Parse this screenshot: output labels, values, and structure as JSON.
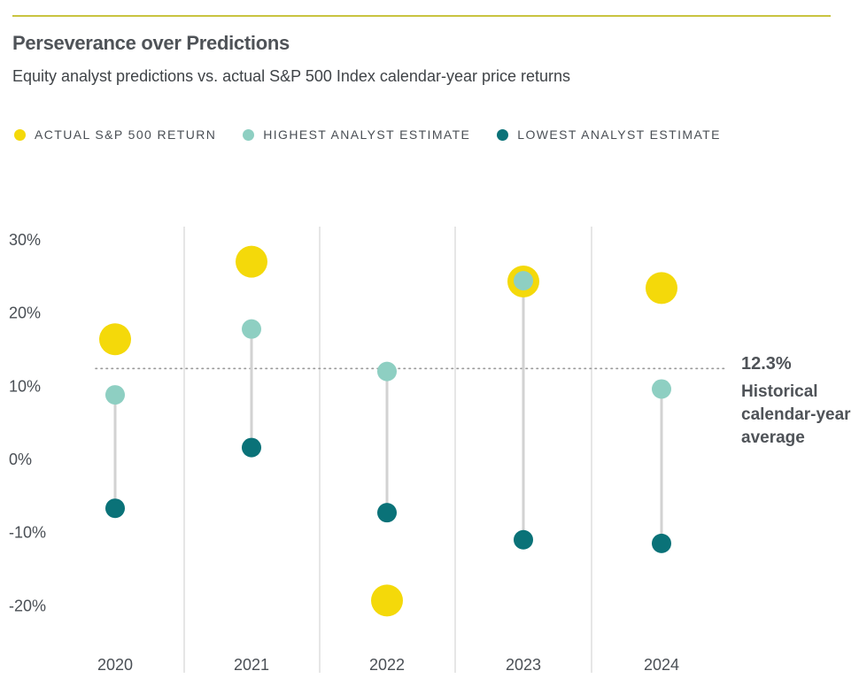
{
  "title": "Perseverance over Predictions",
  "subtitle": "Equity analyst predictions vs. actual S&P 500 Index calendar-year price returns",
  "colors": {
    "actual": "#f4d90a",
    "highest": "#8ecfc2",
    "lowest": "#0a7278",
    "connector": "#d2d2d2",
    "gridline": "#d6d6d6",
    "avg_line": "#9a9a9a"
  },
  "legend": [
    {
      "key": "actual",
      "label": "ACTUAL S&P 500 RETURN"
    },
    {
      "key": "highest",
      "label": "HIGHEST ANALYST ESTIMATE"
    },
    {
      "key": "lowest",
      "label": "LOWEST ANALYST ESTIMATE"
    }
  ],
  "annotation": {
    "value_label": "12.3%",
    "lines": [
      "Historical",
      "calendar-year",
      "average"
    ]
  },
  "chart_data": {
    "type": "scatter",
    "title": "Perseverance over Predictions",
    "subtitle": "Equity analyst predictions vs. actual S&P 500 Index calendar-year price returns",
    "categories": [
      "2020",
      "2021",
      "2022",
      "2023",
      "2024"
    ],
    "series": [
      {
        "name": "ACTUAL S&P 500 RETURN",
        "key": "actual",
        "values": [
          16.3,
          26.9,
          -19.4,
          24.2,
          23.3
        ]
      },
      {
        "name": "HIGHEST ANALYST ESTIMATE",
        "key": "highest",
        "values": [
          8.7,
          17.7,
          11.9,
          24.3,
          9.5
        ]
      },
      {
        "name": "LOWEST ANALYST ESTIMATE",
        "key": "lowest",
        "values": [
          -6.8,
          1.5,
          -7.4,
          -11.1,
          -11.6
        ]
      }
    ],
    "reference_line": {
      "value": 12.3,
      "label": "12.3%"
    },
    "ylim": [
      -25,
      35
    ],
    "yticks": [
      30,
      20,
      10,
      0,
      -10,
      -20
    ],
    "ytick_labels": [
      "30%",
      "20%",
      "10%",
      "0%",
      "-10%",
      "-20%"
    ],
    "xlabel": "",
    "ylabel": ""
  }
}
